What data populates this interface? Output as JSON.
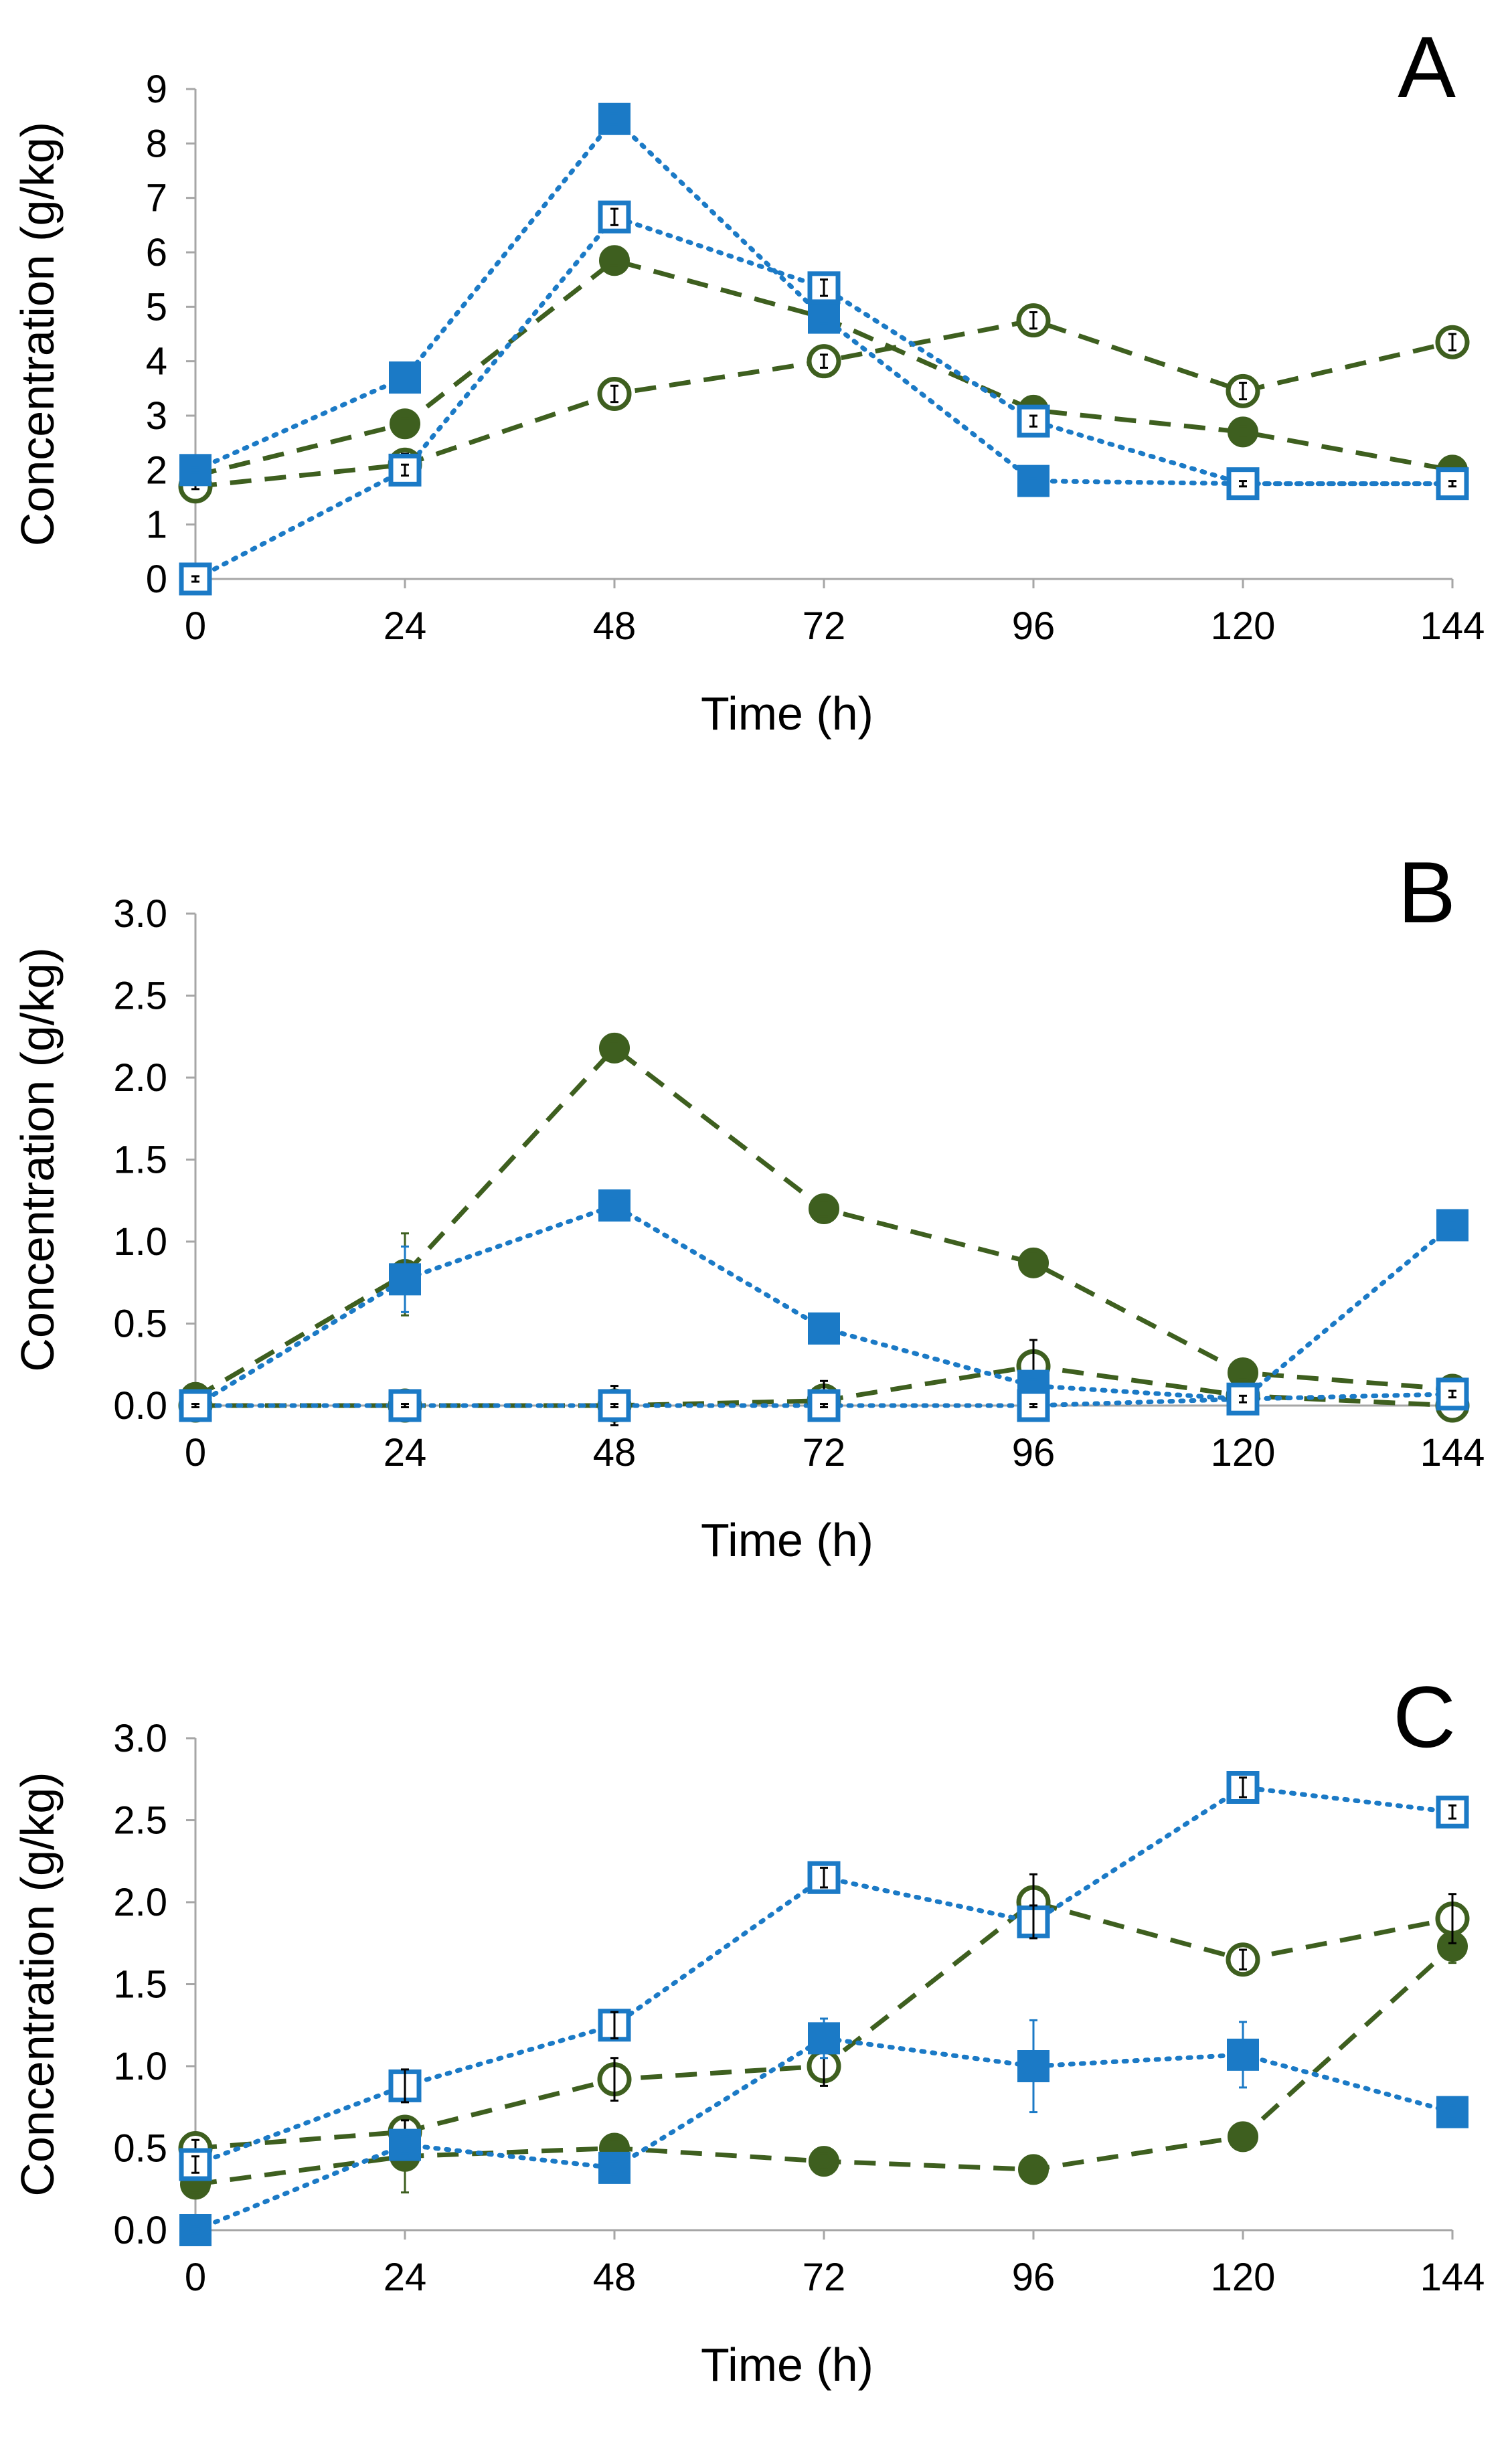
{
  "colors": {
    "green": "#3e5f1f",
    "blue": "#1b7ac6",
    "axis": "#a6a6a6",
    "errorbar": "#000000"
  },
  "chart_data": [
    {
      "type": "line",
      "panel_label": "A",
      "xlabel": "Time (h)",
      "ylabel": "Concentration (g/kg)",
      "x": [
        0,
        24,
        48,
        72,
        96,
        120,
        144
      ],
      "x_tick_labels": [
        "0",
        "24",
        "48",
        "72",
        "96",
        "120",
        "144"
      ],
      "ylim": [
        0,
        9
      ],
      "y_ticks": [
        0,
        1,
        2,
        3,
        4,
        5,
        6,
        7,
        8,
        9
      ],
      "y_tick_labels": [
        "0",
        "1",
        "2",
        "3",
        "4",
        "5",
        "6",
        "7",
        "8",
        "9"
      ],
      "series": [
        {
          "name": "green-filled-circle",
          "color": "green",
          "marker": "circle",
          "filled": true,
          "line": "dashed",
          "values": [
            1.9,
            2.85,
            5.85,
            4.8,
            3.1,
            2.7,
            2.0
          ],
          "errors": [
            0.05,
            0.1,
            0.1,
            0.1,
            0.1,
            0.1,
            0.05
          ]
        },
        {
          "name": "green-open-circle",
          "color": "green",
          "marker": "circle",
          "filled": false,
          "line": "dashed",
          "values": [
            1.7,
            2.1,
            3.4,
            4.0,
            4.75,
            3.45,
            4.35
          ],
          "errors": [
            0.05,
            0.2,
            0.15,
            0.12,
            0.15,
            0.15,
            0.15
          ]
        },
        {
          "name": "blue-filled-square",
          "color": "blue",
          "marker": "square",
          "filled": true,
          "line": "dotted",
          "values": [
            2.0,
            3.7,
            8.45,
            4.8,
            1.8,
            1.75,
            1.75
          ],
          "errors": [
            0.05,
            0.1,
            0.1,
            0.1,
            0.05,
            0.05,
            0.05
          ]
        },
        {
          "name": "blue-open-square",
          "color": "blue",
          "marker": "square",
          "filled": false,
          "line": "dotted",
          "values": [
            0.0,
            2.0,
            6.65,
            5.35,
            2.9,
            1.75,
            1.75
          ],
          "errors": [
            0.05,
            0.1,
            0.15,
            0.15,
            0.1,
            0.05,
            0.05
          ]
        }
      ]
    },
    {
      "type": "line",
      "panel_label": "B",
      "xlabel": "Time (h)",
      "ylabel": "Concentration (g/kg)",
      "x": [
        0,
        24,
        48,
        72,
        96,
        120,
        144
      ],
      "x_tick_labels": [
        "0",
        "24",
        "48",
        "72",
        "96",
        "120",
        "144"
      ],
      "ylim": [
        0,
        3
      ],
      "y_ticks": [
        0,
        0.5,
        1,
        1.5,
        2,
        2.5,
        3
      ],
      "y_tick_labels": [
        "0.0",
        "0.5",
        "1.0",
        "1.5",
        "2.0",
        "2.5",
        "3.0"
      ],
      "series": [
        {
          "name": "green-filled-circle",
          "color": "green",
          "marker": "circle",
          "filled": true,
          "line": "dashed",
          "values": [
            0.05,
            0.8,
            2.18,
            1.2,
            0.87,
            0.2,
            0.1
          ],
          "errors": [
            0.02,
            0.25,
            0.04,
            0.05,
            0.07,
            0.04,
            0.04
          ]
        },
        {
          "name": "green-open-circle",
          "color": "green",
          "marker": "circle",
          "filled": false,
          "line": "dashed",
          "values": [
            0.0,
            0.0,
            0.0,
            0.03,
            0.24,
            0.06,
            0.0
          ],
          "errors": [
            0.01,
            0.03,
            0.12,
            0.12,
            0.16,
            0.03,
            0.02
          ]
        },
        {
          "name": "blue-filled-square",
          "color": "blue",
          "marker": "square",
          "filled": true,
          "line": "dotted",
          "values": [
            0.0,
            0.77,
            1.22,
            0.47,
            0.12,
            0.04,
            1.1
          ],
          "errors": [
            0.01,
            0.2,
            0.04,
            0.08,
            0.04,
            0.03,
            0.03
          ]
        },
        {
          "name": "blue-open-square",
          "color": "blue",
          "marker": "square",
          "filled": false,
          "line": "dotted",
          "values": [
            0.0,
            0.0,
            0.0,
            0.0,
            0.0,
            0.04,
            0.07
          ],
          "errors": [
            0.01,
            0.01,
            0.01,
            0.01,
            0.01,
            0.02,
            0.02
          ]
        }
      ]
    },
    {
      "type": "line",
      "panel_label": "C",
      "xlabel": "Time (h)",
      "ylabel": "Concentration (g/kg)",
      "x": [
        0,
        24,
        48,
        72,
        96,
        120,
        144
      ],
      "x_tick_labels": [
        "0",
        "24",
        "48",
        "72",
        "96",
        "120",
        "144"
      ],
      "ylim": [
        0,
        3
      ],
      "y_ticks": [
        0,
        0.5,
        1,
        1.5,
        2,
        2.5,
        3
      ],
      "y_tick_labels": [
        "0.0",
        "0.5",
        "1.0",
        "1.5",
        "2.0",
        "2.5",
        "3.0"
      ],
      "series": [
        {
          "name": "green-filled-circle",
          "color": "green",
          "marker": "circle",
          "filled": true,
          "line": "dashed",
          "values": [
            0.28,
            0.45,
            0.5,
            0.42,
            0.37,
            0.57,
            1.73
          ],
          "errors": [
            0.05,
            0.22,
            0.05,
            0.05,
            0.08,
            0.05,
            0.1
          ]
        },
        {
          "name": "green-open-circle",
          "color": "green",
          "marker": "circle",
          "filled": false,
          "line": "dashed",
          "values": [
            0.5,
            0.6,
            0.92,
            1.0,
            2.0,
            1.65,
            1.9
          ],
          "errors": [
            0.05,
            0.07,
            0.13,
            0.12,
            0.17,
            0.06,
            0.15
          ]
        },
        {
          "name": "blue-filled-square",
          "color": "blue",
          "marker": "square",
          "filled": true,
          "line": "dotted",
          "values": [
            0.0,
            0.52,
            0.38,
            1.17,
            1.0,
            1.07,
            0.72
          ],
          "errors": [
            0.02,
            0.05,
            0.04,
            0.12,
            0.28,
            0.2,
            0.04
          ]
        },
        {
          "name": "blue-open-square",
          "color": "blue",
          "marker": "square",
          "filled": false,
          "line": "dotted",
          "values": [
            0.4,
            0.88,
            1.25,
            2.15,
            1.88,
            2.7,
            2.55
          ],
          "errors": [
            0.05,
            0.1,
            0.08,
            0.06,
            0.1,
            0.06,
            0.04
          ]
        }
      ]
    }
  ]
}
